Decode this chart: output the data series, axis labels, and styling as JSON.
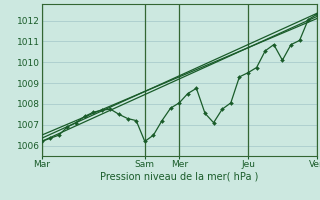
{
  "xlabel": "Pression niveau de la mer( hPa )",
  "bg_color": "#cce8e0",
  "grid_color": "#aacccc",
  "line_color": "#1a5c2a",
  "vline_color": "#336633",
  "ylim": [
    1005.5,
    1012.8
  ],
  "xlim": [
    0,
    96
  ],
  "x_ticks": [
    0,
    36,
    48,
    72,
    96
  ],
  "x_labels": [
    "Mar",
    "Sam",
    "Mer",
    "Jeu",
    "Ven"
  ],
  "yticks": [
    1006,
    1007,
    1008,
    1009,
    1010,
    1011,
    1012
  ],
  "vline_x": [
    0,
    36,
    48,
    72,
    96
  ],
  "line1_x": [
    0,
    3,
    6,
    9,
    12,
    15,
    18,
    21,
    24,
    27,
    30,
    33,
    36,
    39,
    42,
    45,
    48,
    51,
    54,
    57,
    60,
    63,
    66,
    69,
    72,
    75,
    78,
    81,
    84,
    87,
    90,
    93,
    96
  ],
  "line1_y": [
    1006.2,
    1006.35,
    1006.5,
    1006.9,
    1007.1,
    1007.4,
    1007.6,
    1007.7,
    1007.75,
    1007.5,
    1007.3,
    1007.2,
    1006.2,
    1006.5,
    1007.2,
    1007.8,
    1008.05,
    1008.5,
    1008.75,
    1007.55,
    1007.1,
    1007.75,
    1008.05,
    1009.3,
    1009.5,
    1009.75,
    1010.55,
    1010.85,
    1010.1,
    1010.85,
    1011.05,
    1012.05,
    1012.3
  ],
  "line2_x": [
    0,
    96
  ],
  "line2_y": [
    1006.2,
    1012.2
  ],
  "line3_x": [
    0,
    96
  ],
  "line3_y": [
    1006.35,
    1012.35
  ],
  "line4_x": [
    0,
    96
  ],
  "line4_y": [
    1006.5,
    1012.1
  ]
}
